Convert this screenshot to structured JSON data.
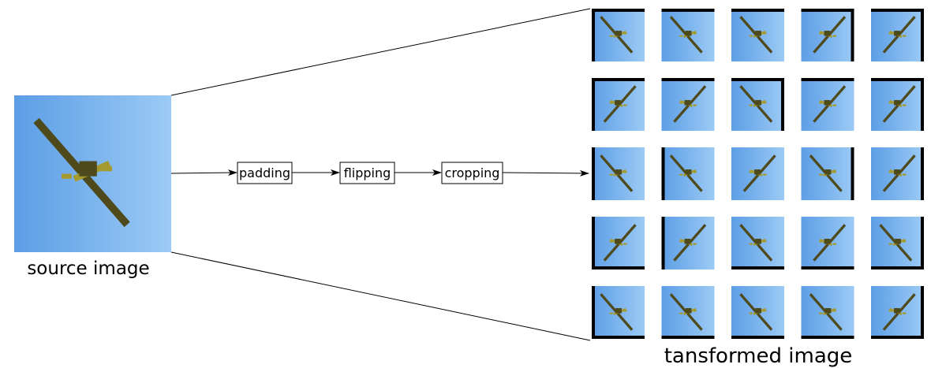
{
  "source": {
    "label": "source image"
  },
  "pipeline": {
    "steps": [
      {
        "label": "padding"
      },
      {
        "label": "flipping"
      },
      {
        "label": "cropping"
      }
    ]
  },
  "output": {
    "label": "tansformed image",
    "grid": {
      "rows": 5,
      "cols": 5,
      "tiles": [
        [
          {
            "flip": false,
            "pad": [
              "left",
              "top"
            ]
          },
          {
            "flip": false,
            "pad": [
              "top"
            ]
          },
          {
            "flip": false,
            "pad": [
              "top"
            ]
          },
          {
            "flip": true,
            "pad": [
              "top",
              "right"
            ]
          },
          {
            "flip": true,
            "pad": [
              "top",
              "right"
            ]
          }
        ],
        [
          {
            "flip": true,
            "pad": [
              "left",
              "top"
            ]
          },
          {
            "flip": true,
            "pad": [
              "top"
            ]
          },
          {
            "flip": false,
            "pad": [
              "top",
              "right"
            ]
          },
          {
            "flip": true,
            "pad": [
              "top"
            ]
          },
          {
            "flip": true,
            "pad": [
              "top",
              "right"
            ]
          }
        ],
        [
          {
            "flip": false,
            "pad": [
              "left"
            ]
          },
          {
            "flip": false,
            "pad": [
              "left"
            ]
          },
          {
            "flip": true,
            "pad": []
          },
          {
            "flip": false,
            "pad": [
              "right"
            ]
          },
          {
            "flip": true,
            "pad": [
              "right"
            ]
          }
        ],
        [
          {
            "flip": true,
            "pad": [
              "left",
              "bottom"
            ]
          },
          {
            "flip": true,
            "pad": [
              "left"
            ]
          },
          {
            "flip": false,
            "pad": [
              "bottom"
            ]
          },
          {
            "flip": true,
            "pad": [
              "bottom"
            ]
          },
          {
            "flip": false,
            "pad": [
              "right",
              "bottom"
            ]
          }
        ],
        [
          {
            "flip": false,
            "pad": [
              "left",
              "bottom"
            ]
          },
          {
            "flip": false,
            "pad": [
              "bottom"
            ]
          },
          {
            "flip": false,
            "pad": [
              "bottom"
            ]
          },
          {
            "flip": false,
            "pad": [
              "bottom"
            ]
          },
          {
            "flip": true,
            "pad": [
              "right",
              "bottom"
            ]
          }
        ]
      ]
    }
  },
  "colors": {
    "sky_light": "#9ccaf5",
    "sky_dark": "#5c9ee6",
    "plane_body": "#4f4a1c",
    "plane_wing": "#a59a2f",
    "padding": "#000000",
    "line": "#000000"
  }
}
